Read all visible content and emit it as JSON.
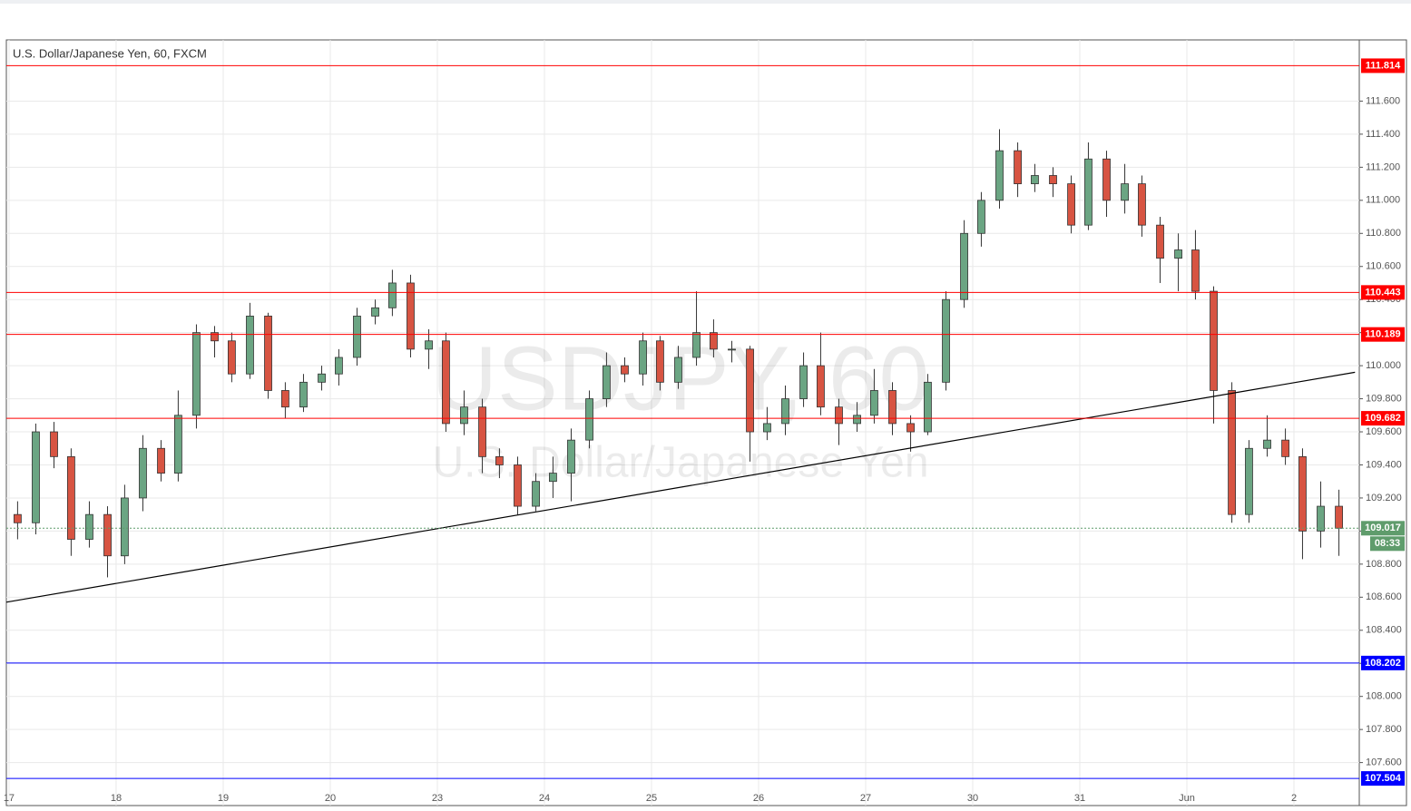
{
  "chart_data": {
    "type": "candlestick",
    "title": "U.S. Dollar/Japanese Yen, 60, FXCM",
    "watermark": "USDJPY, 60",
    "watermark_subtitle": "U.S. Dollar/Japanese Yen",
    "up_color": "#6ba583",
    "down_color": "#d75442",
    "grid": true,
    "xlim": [
      -0.025,
      12.61
    ],
    "ylim": [
      107.34,
      111.97
    ],
    "xticks": [
      {
        "value": 0,
        "label": "17"
      },
      {
        "value": 1,
        "label": "18"
      },
      {
        "value": 2,
        "label": "19"
      },
      {
        "value": 3,
        "label": "20"
      },
      {
        "value": 4,
        "label": "23"
      },
      {
        "value": 5,
        "label": "24"
      },
      {
        "value": 6,
        "label": "25"
      },
      {
        "value": 7,
        "label": "26"
      },
      {
        "value": 8,
        "label": "27"
      },
      {
        "value": 9,
        "label": "30"
      },
      {
        "value": 10,
        "label": "31"
      },
      {
        "value": 11,
        "label": "Jun"
      },
      {
        "value": 12,
        "label": "2"
      }
    ],
    "yticks": [
      {
        "value": 107.6,
        "label": "107.600"
      },
      {
        "value": 107.8,
        "label": "107.800"
      },
      {
        "value": 108.0,
        "label": "108.000"
      },
      {
        "value": 108.2,
        "label": "108.200"
      },
      {
        "value": 108.4,
        "label": "108.400"
      },
      {
        "value": 108.6,
        "label": "108.600"
      },
      {
        "value": 108.8,
        "label": "108.800"
      },
      {
        "value": 109.0,
        "label": "109.000"
      },
      {
        "value": 109.2,
        "label": "109.200"
      },
      {
        "value": 109.4,
        "label": "109.400"
      },
      {
        "value": 109.6,
        "label": "109.600"
      },
      {
        "value": 109.8,
        "label": "109.800"
      },
      {
        "value": 110.0,
        "label": "110.000"
      },
      {
        "value": 110.2,
        "label": "110.200"
      },
      {
        "value": 110.4,
        "label": "110.400"
      },
      {
        "value": 110.6,
        "label": "110.600"
      },
      {
        "value": 110.8,
        "label": "110.800"
      },
      {
        "value": 111.0,
        "label": "111.000"
      },
      {
        "value": 111.2,
        "label": "111.200"
      },
      {
        "value": 111.4,
        "label": "111.400"
      },
      {
        "value": 111.6,
        "label": "111.600"
      }
    ],
    "levels": [
      {
        "value": 111.814,
        "color": "#ff0000"
      },
      {
        "value": 110.443,
        "color": "#ff0000"
      },
      {
        "value": 110.189,
        "color": "#ff0000"
      },
      {
        "value": 109.682,
        "color": "#ff0000"
      },
      {
        "value": 108.202,
        "color": "#0000ff"
      },
      {
        "value": 107.504,
        "color": "#0000ff"
      }
    ],
    "last_price": 109.017,
    "last_price_color": "#5f9c6c",
    "countdown": "08:33",
    "trendline": {
      "x": [
        -0.025,
        12.57
      ],
      "y": [
        108.57,
        109.96
      ],
      "color": "#000000"
    },
    "x": [
      0.08,
      0.25,
      0.42,
      0.58,
      0.75,
      0.92,
      1.08,
      1.25,
      1.42,
      1.58,
      1.75,
      1.92,
      2.08,
      2.25,
      2.42,
      2.58,
      2.75,
      2.92,
      3.08,
      3.25,
      3.42,
      3.58,
      3.75,
      3.92,
      4.08,
      4.25,
      4.42,
      4.58,
      4.75,
      4.92,
      5.08,
      5.25,
      5.42,
      5.58,
      5.75,
      5.92,
      6.08,
      6.25,
      6.42,
      6.58,
      6.75,
      6.92,
      7.08,
      7.25,
      7.42,
      7.58,
      7.75,
      7.92,
      8.08,
      8.25,
      8.42,
      8.58,
      8.75,
      8.92,
      9.08,
      9.25,
      9.42,
      9.58,
      9.75,
      9.92,
      10.08,
      10.25,
      10.42,
      10.58,
      10.75,
      10.92,
      11.08,
      11.25,
      11.42,
      11.58,
      11.75,
      11.92,
      12.08,
      12.25,
      12.42
    ],
    "open": [
      109.1,
      109.05,
      109.6,
      109.45,
      108.95,
      109.1,
      108.85,
      109.2,
      109.5,
      109.35,
      109.7,
      110.2,
      110.15,
      109.95,
      110.3,
      109.85,
      109.75,
      109.9,
      109.95,
      110.05,
      110.3,
      110.35,
      110.5,
      110.1,
      110.15,
      109.65,
      109.75,
      109.45,
      109.4,
      109.15,
      109.3,
      109.35,
      109.55,
      109.8,
      110.0,
      109.95,
      110.15,
      109.9,
      110.05,
      110.2,
      110.1,
      110.1,
      109.6,
      109.65,
      109.8,
      110.0,
      109.75,
      109.65,
      109.7,
      109.85,
      109.65,
      109.6,
      109.9,
      110.4,
      110.8,
      111.0,
      111.3,
      111.1,
      111.15,
      111.1,
      110.85,
      111.25,
      111.0,
      111.1,
      110.85,
      110.65,
      110.7,
      110.45,
      109.85,
      109.1,
      109.5,
      109.55,
      109.45,
      109.0,
      109.15
    ],
    "high": [
      109.18,
      109.65,
      109.66,
      109.5,
      109.18,
      109.15,
      109.28,
      109.58,
      109.55,
      109.85,
      110.25,
      110.24,
      110.2,
      110.38,
      110.32,
      109.9,
      109.95,
      110.0,
      110.1,
      110.35,
      110.4,
      110.58,
      110.55,
      110.22,
      110.2,
      109.85,
      109.8,
      109.5,
      109.45,
      109.35,
      109.45,
      109.62,
      109.85,
      110.08,
      110.05,
      110.2,
      110.18,
      110.12,
      110.45,
      110.28,
      110.15,
      110.12,
      109.75,
      109.88,
      110.08,
      110.2,
      109.8,
      109.78,
      109.98,
      109.9,
      109.7,
      109.95,
      110.45,
      110.88,
      111.05,
      111.43,
      111.35,
      111.22,
      111.2,
      111.15,
      111.35,
      111.3,
      111.22,
      111.15,
      110.9,
      110.8,
      110.82,
      110.48,
      109.9,
      109.55,
      109.7,
      109.62,
      109.5,
      109.3,
      109.25
    ],
    "low": [
      108.95,
      108.98,
      109.38,
      108.85,
      108.9,
      108.72,
      108.8,
      109.12,
      109.3,
      109.3,
      109.62,
      110.05,
      109.9,
      109.92,
      109.8,
      109.68,
      109.72,
      109.85,
      109.88,
      110.0,
      110.25,
      110.3,
      110.05,
      109.98,
      109.6,
      109.58,
      109.35,
      109.32,
      109.1,
      109.12,
      109.2,
      109.18,
      109.5,
      109.75,
      109.9,
      109.88,
      109.85,
      109.86,
      110.0,
      110.05,
      110.02,
      109.42,
      109.55,
      109.58,
      109.75,
      109.7,
      109.52,
      109.6,
      109.65,
      109.58,
      109.48,
      109.58,
      109.85,
      110.35,
      110.72,
      110.95,
      111.02,
      111.05,
      111.02,
      110.8,
      110.82,
      110.9,
      110.92,
      110.78,
      110.5,
      110.45,
      110.4,
      109.65,
      109.05,
      109.05,
      109.45,
      109.4,
      108.83,
      108.9,
      108.85
    ],
    "close": [
      109.05,
      109.6,
      109.45,
      108.95,
      109.1,
      108.85,
      109.2,
      109.5,
      109.35,
      109.7,
      110.2,
      110.15,
      109.95,
      110.3,
      109.85,
      109.75,
      109.9,
      109.95,
      110.05,
      110.3,
      110.35,
      110.5,
      110.1,
      110.15,
      109.65,
      109.75,
      109.45,
      109.4,
      109.15,
      109.3,
      109.35,
      109.55,
      109.8,
      110.0,
      109.95,
      110.15,
      109.9,
      110.05,
      110.2,
      110.1,
      110.1,
      109.6,
      109.65,
      109.8,
      110.0,
      109.75,
      109.65,
      109.7,
      109.85,
      109.65,
      109.6,
      109.9,
      110.4,
      110.8,
      111.0,
      111.3,
      111.1,
      111.15,
      111.1,
      110.85,
      111.25,
      111.0,
      111.1,
      110.85,
      110.65,
      110.7,
      110.45,
      109.85,
      109.1,
      109.5,
      109.55,
      109.45,
      109.0,
      109.15,
      109.017
    ]
  }
}
